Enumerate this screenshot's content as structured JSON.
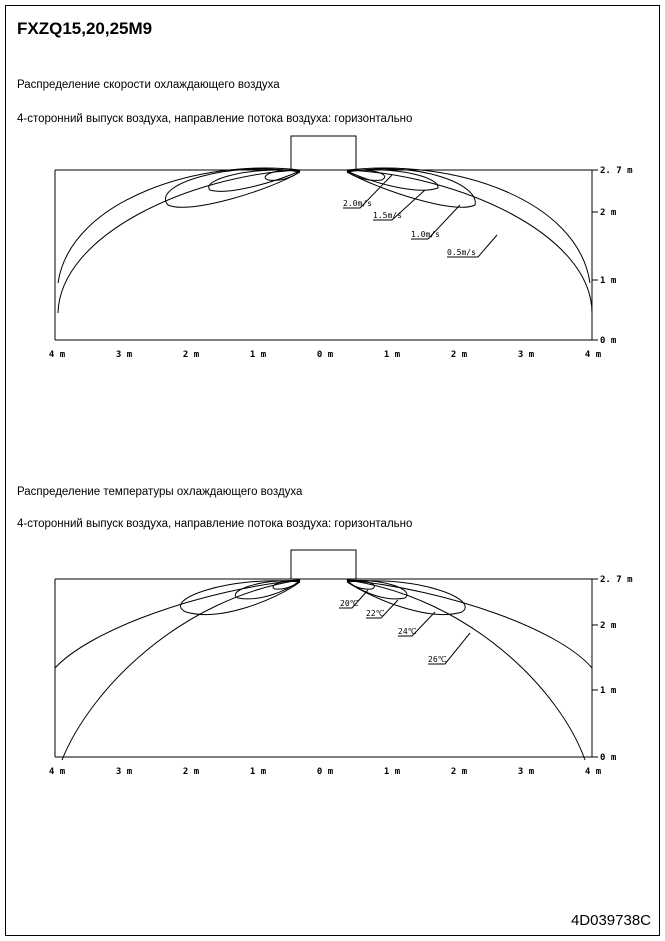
{
  "page": {
    "title": "FXZQ15,20,25M9",
    "doc_id": "4D039738C"
  },
  "velocity": {
    "heading": "Распределение скорости охлаждающего воздуха",
    "subheading": "4-сторонний выпуск воздуха, направление потока воздуха: горизонтально",
    "x_ticks": [
      "4 m",
      "3 m",
      "2 m",
      "1 m",
      "0 m",
      "1 m",
      "2 m",
      "3 m",
      "4 m"
    ],
    "y_ticks": [
      "2. 7 m",
      "2 m",
      "1 m",
      "0 m"
    ],
    "contour_labels": [
      "2.0m/s",
      "1.5m/s",
      "1.0m/s",
      "0.5m/s"
    ]
  },
  "temperature": {
    "heading": "Распределение температуры охлаждающего воздуха",
    "subheading": "4-сторонний выпуск воздуха, направление потока воздуха: горизонтально",
    "x_ticks": [
      "4 m",
      "3 m",
      "2 m",
      "1 m",
      "0 m",
      "1 m",
      "2 m",
      "3 m",
      "4 m"
    ],
    "y_ticks": [
      "2. 7 m",
      "2 m",
      "1 m",
      "0 m"
    ],
    "contour_labels": [
      "20℃",
      "22℃",
      "24℃",
      "26℃"
    ]
  }
}
